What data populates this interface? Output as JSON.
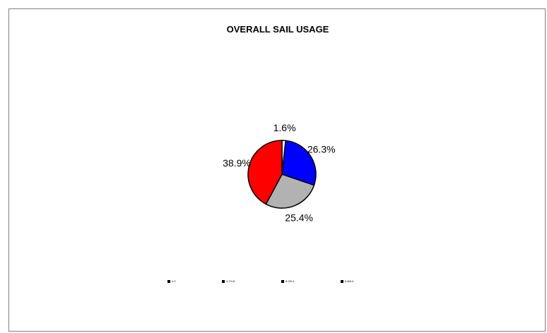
{
  "chart_data": {
    "type": "pie",
    "title": "OVERALL SAIL USAGE",
    "categories": [
      "4.2",
      "4.7/4.8",
      "5.2/5.4",
      "5.8/6.0"
    ],
    "values": [
      1.6,
      26.3,
      25.4,
      38.9
    ],
    "labels": [
      "1.6%",
      "26.3%",
      "25.4%",
      "38.9%"
    ],
    "colors": [
      "#ffffff",
      "#0000ff",
      "#b2b2b2",
      "#ff0000"
    ],
    "legend_position": "bottom"
  }
}
